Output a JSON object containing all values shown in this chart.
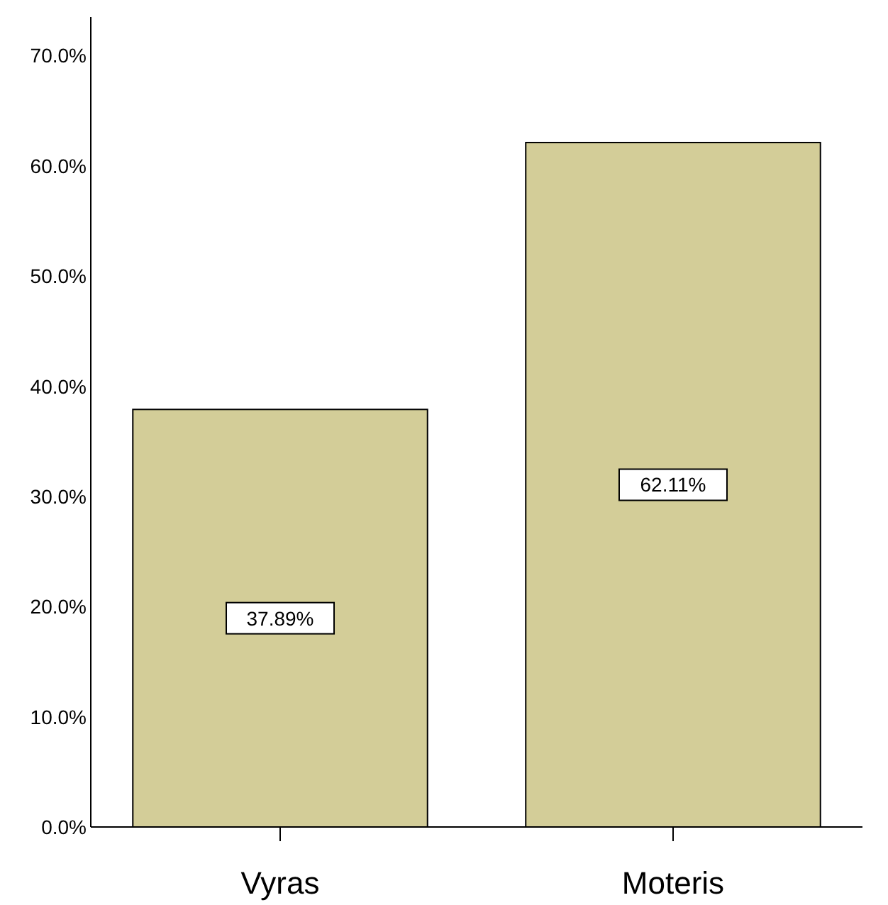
{
  "chart_data": {
    "type": "bar",
    "categories": [
      "Vyras",
      "Moteris"
    ],
    "values": [
      37.89,
      62.11
    ],
    "color": "#d3cd98",
    "data_labels": true,
    "value_labels": [
      "37.89%",
      "62.11%"
    ],
    "ylim": [
      0,
      73.5
    ],
    "yticks": [
      {
        "value": 0,
        "label": "0.0%"
      },
      {
        "value": 10,
        "label": "10.0%"
      },
      {
        "value": 20,
        "label": "20.0%"
      },
      {
        "value": 30,
        "label": "30.0%"
      },
      {
        "value": 40,
        "label": "40.0%"
      },
      {
        "value": 50,
        "label": "50.0%"
      },
      {
        "value": 60,
        "label": "60.0%"
      },
      {
        "value": 70,
        "label": "70.0%"
      }
    ],
    "grid": false
  }
}
